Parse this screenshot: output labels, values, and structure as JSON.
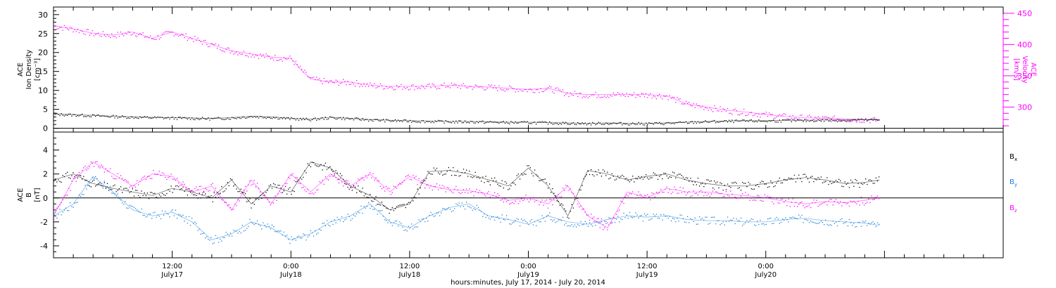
{
  "colors": {
    "density": "#000000",
    "velocity": "#ff00ff",
    "bx": "#000000",
    "by": "#1e7fd8",
    "bz": "#ff00ff",
    "axis": "#000000"
  },
  "x_axis": {
    "title": "hours:minutes, July 17, 2014 - July 20, 2014",
    "range_hours": [
      0,
      96
    ],
    "major_ticks": [
      {
        "hour": 12,
        "time": "12:00",
        "date": "July17"
      },
      {
        "hour": 24,
        "time": "0:00",
        "date": "July18"
      },
      {
        "hour": 36,
        "time": "12:00",
        "date": "July18"
      },
      {
        "hour": 48,
        "time": "0:00",
        "date": "July19"
      },
      {
        "hour": 60,
        "time": "12:00",
        "date": "July19"
      },
      {
        "hour": 72,
        "time": "0:00",
        "date": "July20"
      }
    ]
  },
  "panels": {
    "top": {
      "left_label": [
        "ACE",
        "Ion Density",
        "[cm⁻³]"
      ],
      "right_label": [
        "ACE",
        "Velocity",
        "[km/s]"
      ],
      "left_ticks": [
        "0",
        "5",
        "10",
        "15",
        "20",
        "25",
        "30"
      ],
      "right_ticks": [
        "300",
        "350",
        "400",
        "450"
      ]
    },
    "bottom": {
      "left_label": [
        "ACE",
        "B",
        "[nT]"
      ],
      "left_ticks": [
        "-4",
        "-2",
        "0",
        "2",
        "4"
      ],
      "legend": [
        {
          "base": "B",
          "sub": "x",
          "color": "#000000"
        },
        {
          "base": "B",
          "sub": "y",
          "color": "#1e7fd8"
        },
        {
          "base": "B",
          "sub": "z",
          "color": "#ff00ff"
        }
      ]
    }
  },
  "chart_data": [
    {
      "type": "scatter",
      "x_units": "hours since July 17, 2014 00:00",
      "xlim": [
        0,
        96
      ],
      "left_ylim": [
        -1,
        32
      ],
      "right_ylim": [
        260,
        460
      ],
      "series": [
        {
          "name": "Ion Density",
          "axis": "left",
          "x": [
            0,
            2,
            4,
            6,
            8,
            10,
            12,
            14,
            16,
            18,
            20,
            22,
            24,
            26,
            28,
            30,
            32,
            34,
            36,
            38,
            40,
            42,
            44,
            46,
            48,
            50,
            52,
            54,
            56,
            58,
            60,
            62,
            64,
            66,
            68,
            70,
            72,
            74,
            76,
            78,
            80,
            82,
            83.5
          ],
          "y": [
            3.8,
            3.6,
            3.4,
            3.2,
            3.0,
            2.9,
            2.8,
            2.7,
            2.6,
            2.8,
            3.2,
            3.0,
            2.6,
            2.4,
            2.9,
            2.6,
            2.3,
            2.1,
            2.0,
            1.9,
            1.8,
            1.8,
            1.7,
            1.6,
            1.6,
            1.5,
            1.4,
            1.3,
            1.4,
            1.3,
            1.3,
            1.4,
            1.6,
            1.8,
            1.9,
            2.0,
            2.0,
            2.1,
            2.1,
            2.2,
            2.2,
            2.3,
            2.3
          ]
        },
        {
          "name": "Velocity",
          "axis": "right",
          "x": [
            0,
            2,
            4,
            6,
            8,
            10,
            12,
            14,
            16,
            18,
            20,
            22,
            24,
            25,
            26,
            28,
            30,
            32,
            34,
            36,
            38,
            40,
            42,
            44,
            46,
            48,
            50,
            52,
            54,
            56,
            58,
            60,
            62,
            64,
            66,
            68,
            70,
            72,
            74,
            76,
            78,
            80,
            82,
            83.5
          ],
          "y": [
            430,
            425,
            418,
            415,
            420,
            410,
            420,
            410,
            400,
            390,
            385,
            380,
            378,
            360,
            345,
            340,
            340,
            335,
            333,
            333,
            333,
            335,
            333,
            332,
            330,
            328,
            330,
            322,
            320,
            320,
            320,
            320,
            318,
            305,
            300,
            295,
            292,
            288,
            285,
            283,
            282,
            281,
            280,
            279
          ]
        }
      ]
    },
    {
      "type": "scatter",
      "x_units": "hours since July 17, 2014 00:00",
      "xlim": [
        0,
        96
      ],
      "ylim": [
        -5,
        5.5
      ],
      "series": [
        {
          "name": "Bx",
          "x": [
            0,
            2,
            4,
            6,
            8,
            10,
            12,
            14,
            16,
            18,
            20,
            22,
            24,
            26,
            28,
            30,
            32,
            34,
            36,
            38,
            40,
            42,
            44,
            46,
            48,
            50,
            52,
            54,
            56,
            58,
            60,
            62,
            64,
            66,
            68,
            70,
            72,
            74,
            76,
            78,
            80,
            82,
            83.5
          ],
          "y": [
            1.5,
            2.0,
            1.2,
            0.8,
            0.5,
            0.2,
            0.8,
            0.5,
            0.0,
            1.5,
            -0.5,
            1.0,
            0.5,
            3.0,
            2.5,
            1.0,
            0.2,
            -1.0,
            -0.5,
            2.2,
            2.3,
            2.0,
            1.5,
            1.0,
            2.5,
            1.0,
            -1.5,
            2.3,
            2.0,
            1.5,
            1.8,
            2.0,
            1.5,
            1.2,
            1.0,
            1.0,
            1.2,
            1.5,
            1.7,
            1.5,
            1.2,
            1.3,
            1.5
          ]
        },
        {
          "name": "By",
          "x": [
            0,
            2,
            4,
            6,
            8,
            10,
            12,
            14,
            16,
            18,
            20,
            22,
            24,
            26,
            28,
            30,
            32,
            34,
            36,
            38,
            40,
            42,
            44,
            46,
            48,
            50,
            52,
            54,
            56,
            58,
            60,
            62,
            64,
            66,
            68,
            70,
            72,
            74,
            76,
            78,
            80,
            82,
            83.5
          ],
          "y": [
            -1.5,
            -0.5,
            1.8,
            0.5,
            -1.0,
            -1.5,
            -1.2,
            -2.0,
            -3.5,
            -3.0,
            -2.0,
            -2.5,
            -3.5,
            -3.0,
            -2.0,
            -1.5,
            -0.5,
            -2.0,
            -2.5,
            -1.5,
            -0.8,
            -0.5,
            -1.5,
            -1.8,
            -2.2,
            -1.5,
            -2.0,
            -2.2,
            -1.8,
            -1.5,
            -1.6,
            -1.5,
            -1.8,
            -1.9,
            -1.9,
            -2.0,
            -2.0,
            -1.8,
            -1.7,
            -1.9,
            -2.0,
            -2.1,
            -2.3
          ]
        },
        {
          "name": "Bz",
          "x": [
            0,
            2,
            4,
            6,
            8,
            10,
            12,
            14,
            16,
            18,
            20,
            22,
            24,
            26,
            28,
            30,
            32,
            34,
            36,
            38,
            40,
            42,
            44,
            46,
            48,
            50,
            52,
            54,
            56,
            58,
            60,
            62,
            64,
            66,
            68,
            70,
            72,
            74,
            76,
            78,
            80,
            82,
            83.5
          ],
          "y": [
            -1.5,
            1.5,
            3.0,
            2.0,
            1.0,
            2.0,
            1.8,
            0.5,
            1.0,
            -1.0,
            1.5,
            -0.5,
            2.0,
            0.5,
            2.0,
            1.0,
            2.0,
            0.5,
            1.8,
            1.0,
            0.7,
            0.6,
            0.3,
            -0.2,
            0.0,
            -0.5,
            1.0,
            -1.5,
            -2.5,
            0.5,
            0.0,
            0.8,
            0.5,
            0.5,
            0.3,
            0.2,
            0.0,
            -0.3,
            -0.5,
            -0.3,
            -0.4,
            -0.2,
            0.0
          ]
        }
      ]
    }
  ]
}
